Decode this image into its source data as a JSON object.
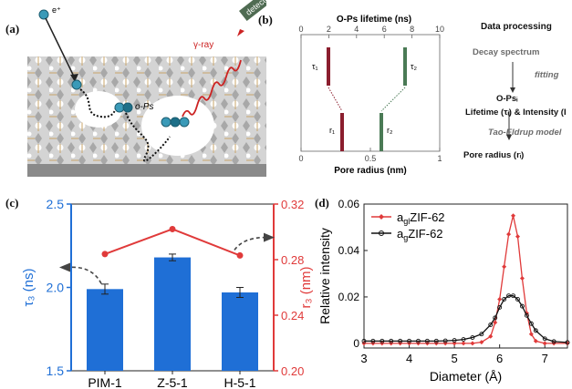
{
  "panel_labels": {
    "a": "(a)",
    "b": "(b)",
    "c": "(c)",
    "d": "(d)"
  },
  "panel_a": {
    "positron_label": "e⁺",
    "ops_label": "o-Ps",
    "gamma_label": "γ-ray",
    "detector_label": "detector",
    "colors": {
      "substrate": "#8a8a8a",
      "framework": "#b9b9b9",
      "pore": "#ffffff",
      "particle": "#3a9ab8",
      "gamma": "#cc2222",
      "detector": "#4f6b52"
    }
  },
  "panel_b": {
    "top_axis_title": "O-Ps lifetime (ns)",
    "top_ticks": [
      "0",
      "2",
      "4",
      "6",
      "8",
      "10"
    ],
    "bottom_axis_title": "Pore radius (nm)",
    "bottom_ticks": [
      "0",
      "0.5",
      "1"
    ],
    "tau1": "τ₁",
    "tau2": "τ₂",
    "r1": "r₁",
    "r2": "r₂",
    "data_processing": {
      "title": "Data processing",
      "step1": "Decay spectrum",
      "fitting": "fitting",
      "step2": "O-Psᵢ",
      "step3": "Lifetime (τᵢ) & Intensity (I",
      "model": "Tao-Eldrup model",
      "step4": "Pore radius (rᵢ)"
    },
    "colors": {
      "tau1": "#8b1e2e",
      "tau2": "#4a7a55"
    }
  },
  "chart_data": [
    {
      "panel": "c",
      "type": "bar",
      "categories": [
        "PIM-1",
        "Z-5-1",
        "H-5-1"
      ],
      "series": [
        {
          "axis": "left",
          "kind": "bar",
          "values": [
            1.99,
            2.18,
            1.97
          ],
          "errors": [
            0.03,
            0.02,
            0.03
          ],
          "color": "#1f6fd6"
        },
        {
          "axis": "right",
          "kind": "line",
          "values": [
            0.284,
            0.302,
            0.283
          ],
          "errors": [
            0.002,
            0.002,
            0.002
          ],
          "color": "#e03a3a"
        }
      ],
      "ylabel_left": "τ₃ (ns)",
      "ylabel_right": "r₃ (nm)",
      "ylim_left": [
        1.5,
        2.5
      ],
      "ylim_right": [
        0.2,
        0.32
      ],
      "yticks_left": [
        "1.5",
        "2.0",
        "2.5"
      ],
      "yticks_right": [
        "0.20",
        "0.24",
        "0.28",
        "0.32"
      ]
    },
    {
      "panel": "d",
      "type": "line",
      "xlabel": "Diameter (Å)",
      "ylabel": "Relative intensity",
      "xlim": [
        3,
        7.5
      ],
      "ylim": [
        -0.002,
        0.06
      ],
      "xticks": [
        "3",
        "4",
        "5",
        "6",
        "7"
      ],
      "yticks": [
        "0",
        "0.02",
        "0.04",
        "0.06"
      ],
      "legend_position": "top-left",
      "series": [
        {
          "name": "a₉ₗZIF-62",
          "legend_main": "a",
          "legend_sub": "gl",
          "legend_rest": "ZIF-62",
          "color": "#e03a3a",
          "marker": "diamond",
          "x": [
            3.0,
            3.2,
            3.4,
            3.6,
            3.8,
            4.0,
            4.2,
            4.4,
            4.6,
            4.8,
            5.0,
            5.2,
            5.4,
            5.6,
            5.8,
            5.9,
            6.0,
            6.1,
            6.2,
            6.3,
            6.4,
            6.5,
            6.6,
            6.7,
            6.8,
            7.0,
            7.2,
            7.5
          ],
          "y": [
            0.0,
            0.0,
            0.0,
            0.0,
            0.0,
            0.0,
            0.0,
            0.0,
            0.0,
            0.0,
            0.0,
            0.0,
            0.0,
            0.0005,
            0.003,
            0.009,
            0.019,
            0.033,
            0.047,
            0.055,
            0.046,
            0.028,
            0.013,
            0.004,
            0.001,
            0.0,
            0.0,
            0.0
          ]
        },
        {
          "name": "a₉ZIF-62",
          "legend_main": "a",
          "legend_sub": "g",
          "legend_rest": "ZIF-62",
          "color": "#111111",
          "marker": "circle",
          "x": [
            3.0,
            3.2,
            3.4,
            3.6,
            3.8,
            4.0,
            4.2,
            4.4,
            4.6,
            4.8,
            5.0,
            5.2,
            5.4,
            5.6,
            5.8,
            5.9,
            6.0,
            6.1,
            6.2,
            6.3,
            6.4,
            6.5,
            6.6,
            6.7,
            6.8,
            7.0,
            7.2,
            7.5
          ],
          "y": [
            0.001,
            0.001,
            0.001,
            0.001,
            0.001,
            0.001,
            0.001,
            0.001,
            0.001,
            0.0011,
            0.0013,
            0.0017,
            0.0025,
            0.004,
            0.008,
            0.011,
            0.0155,
            0.019,
            0.0205,
            0.0205,
            0.019,
            0.016,
            0.012,
            0.0085,
            0.0055,
            0.002,
            0.0008,
            0.0004
          ]
        }
      ]
    }
  ]
}
